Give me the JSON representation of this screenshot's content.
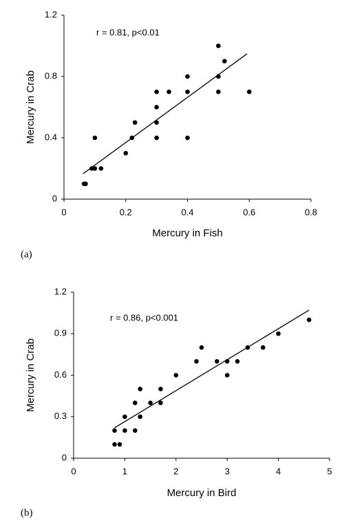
{
  "chart_data": [
    {
      "type": "scatter",
      "panel_label": "(a)",
      "annotation": "r = 0.81, p<0.01",
      "x_label": "Mercury in Fish",
      "y_label": "Mercury in Crab",
      "color": "#000000",
      "xlim": [
        0,
        0.8
      ],
      "xticks": [
        0,
        0.2,
        0.4,
        0.6,
        0.8
      ],
      "ylim": [
        0,
        1.2
      ],
      "yticks": [
        0,
        0.4,
        0.8,
        1.2
      ],
      "x": [
        0.065,
        0.07,
        0.09,
        0.1,
        0.1,
        0.12,
        0.2,
        0.22,
        0.23,
        0.3,
        0.3,
        0.3,
        0.3,
        0.34,
        0.4,
        0.4,
        0.4,
        0.5,
        0.5,
        0.5,
        0.52,
        0.6
      ],
      "values": [
        0.1,
        0.1,
        0.2,
        0.2,
        0.4,
        0.2,
        0.3,
        0.4,
        0.5,
        0.4,
        0.5,
        0.6,
        0.7,
        0.7,
        0.4,
        0.7,
        0.8,
        0.7,
        0.8,
        1.0,
        0.9,
        0.7
      ],
      "trendline": {
        "x": [
          0.062,
          0.593
        ],
        "values": [
          0.166,
          0.948
        ]
      }
    },
    {
      "type": "scatter",
      "panel_label": "(b)",
      "annotation": "r = 0.86, p<0.001",
      "x_label": "Mercury in Bird",
      "y_label": "Mercury in Crab",
      "color": "#000000",
      "xlim": [
        0,
        5
      ],
      "xticks": [
        0,
        1,
        2,
        3,
        4,
        5
      ],
      "ylim": [
        0,
        1.2
      ],
      "yticks": [
        0,
        0.3,
        0.6,
        0.9,
        1.2
      ],
      "x": [
        0.8,
        0.9,
        0.8,
        1,
        1,
        1.2,
        1.2,
        1.3,
        1.3,
        1.5,
        1.7,
        1.7,
        2,
        2.4,
        2.5,
        2.8,
        3,
        3,
        3.2,
        3.4,
        3.7,
        4,
        4.6
      ],
      "values": [
        0.1,
        0.1,
        0.2,
        0.2,
        0.3,
        0.2,
        0.4,
        0.3,
        0.5,
        0.4,
        0.4,
        0.5,
        0.6,
        0.7,
        0.8,
        0.7,
        0.6,
        0.7,
        0.7,
        0.8,
        0.8,
        0.9,
        1.0
      ],
      "trendline": {
        "x": [
          0.8,
          4.6
        ],
        "values": [
          0.22,
          1.07
        ]
      }
    }
  ]
}
